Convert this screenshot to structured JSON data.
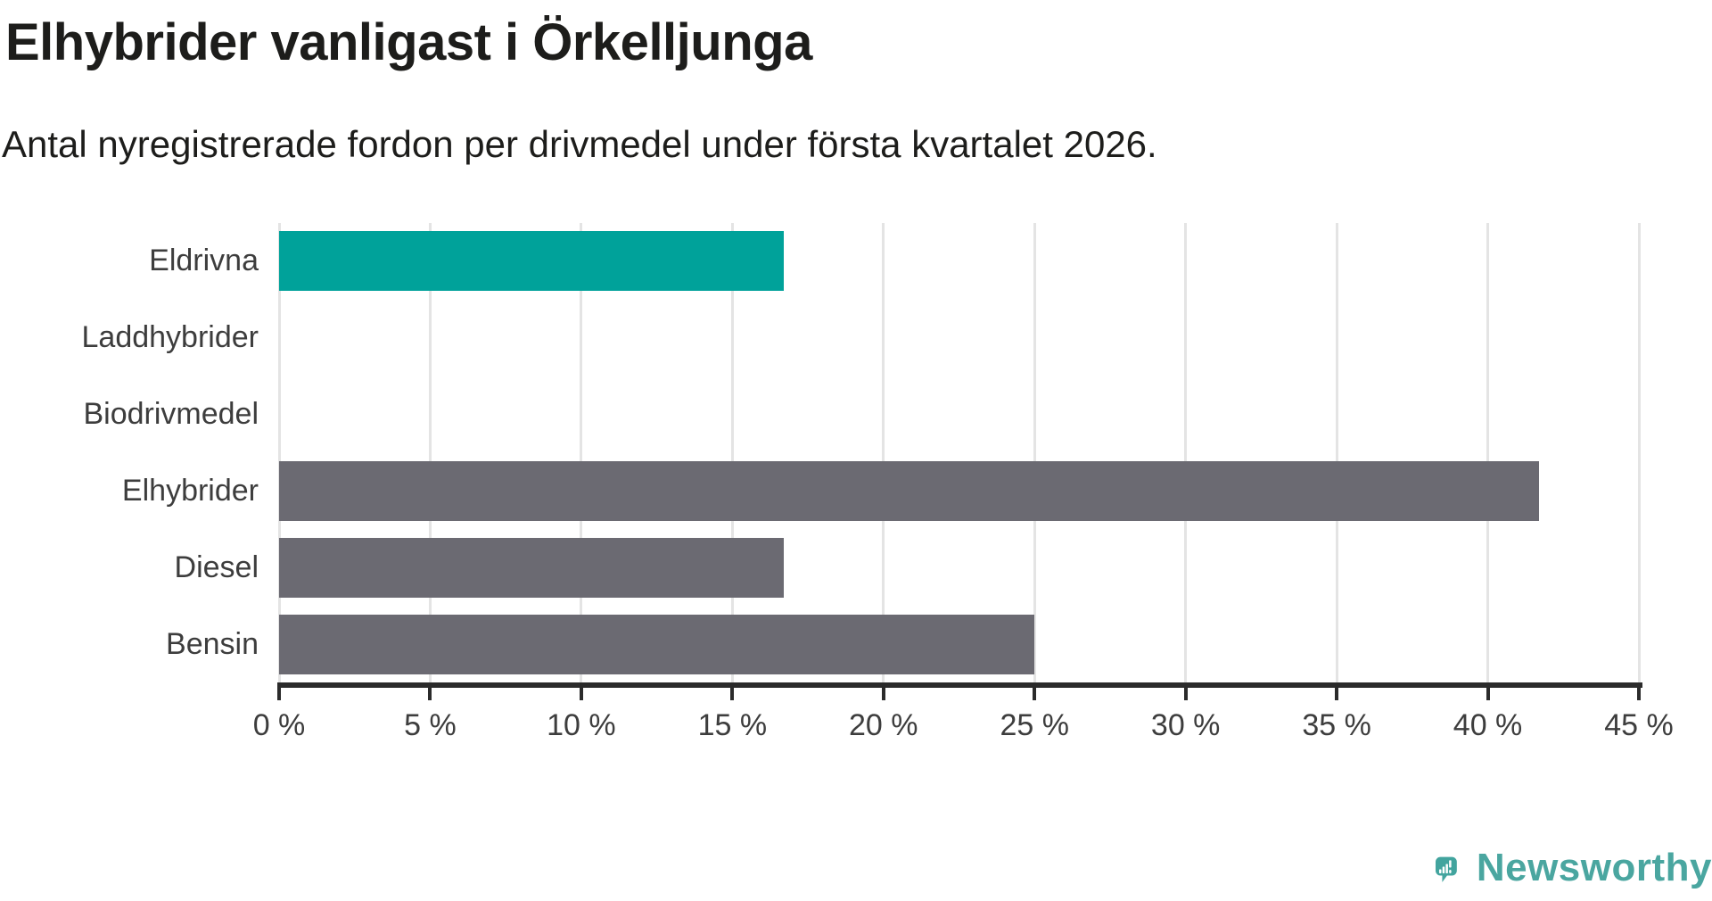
{
  "chart_data": {
    "type": "bar",
    "orientation": "horizontal",
    "title": "Elhybrider vanligast i Örkelljunga",
    "subtitle": "Antal nyregistrerade fordon per drivmedel under första kvartalet 2026.",
    "categories": [
      "Eldrivna",
      "Laddhybrider",
      "Biodrivmedel",
      "Elhybrider",
      "Diesel",
      "Bensin"
    ],
    "values": [
      16.7,
      0,
      0,
      41.7,
      16.7,
      25
    ],
    "unit": "%",
    "xlabel": "",
    "ylabel": "",
    "xlim": [
      0,
      45
    ],
    "xtick_values": [
      0,
      5,
      10,
      15,
      20,
      25,
      30,
      35,
      40,
      45
    ],
    "xtick_labels": [
      "0 %",
      "5 %",
      "10 %",
      "15 %",
      "20 %",
      "25 %",
      "30 %",
      "35 %",
      "40 %",
      "45 %"
    ],
    "grid": "vertical-gridlines-on",
    "legend": "none",
    "highlight_index": 0
  },
  "colors": {
    "highlight_bar": "#00a29a",
    "default_bar": "#6b6a72",
    "gridline": "#e4e4e4",
    "axis": "#2b2b2b",
    "title_text": "#1d1d1b",
    "label_text": "#3d3d3d",
    "logo_pin": "#42a49e",
    "logo_text": "#4aa6a0"
  },
  "branding": {
    "logo_text": "Newsworthy",
    "logo_icon": "newsworthy-pin-icon"
  }
}
